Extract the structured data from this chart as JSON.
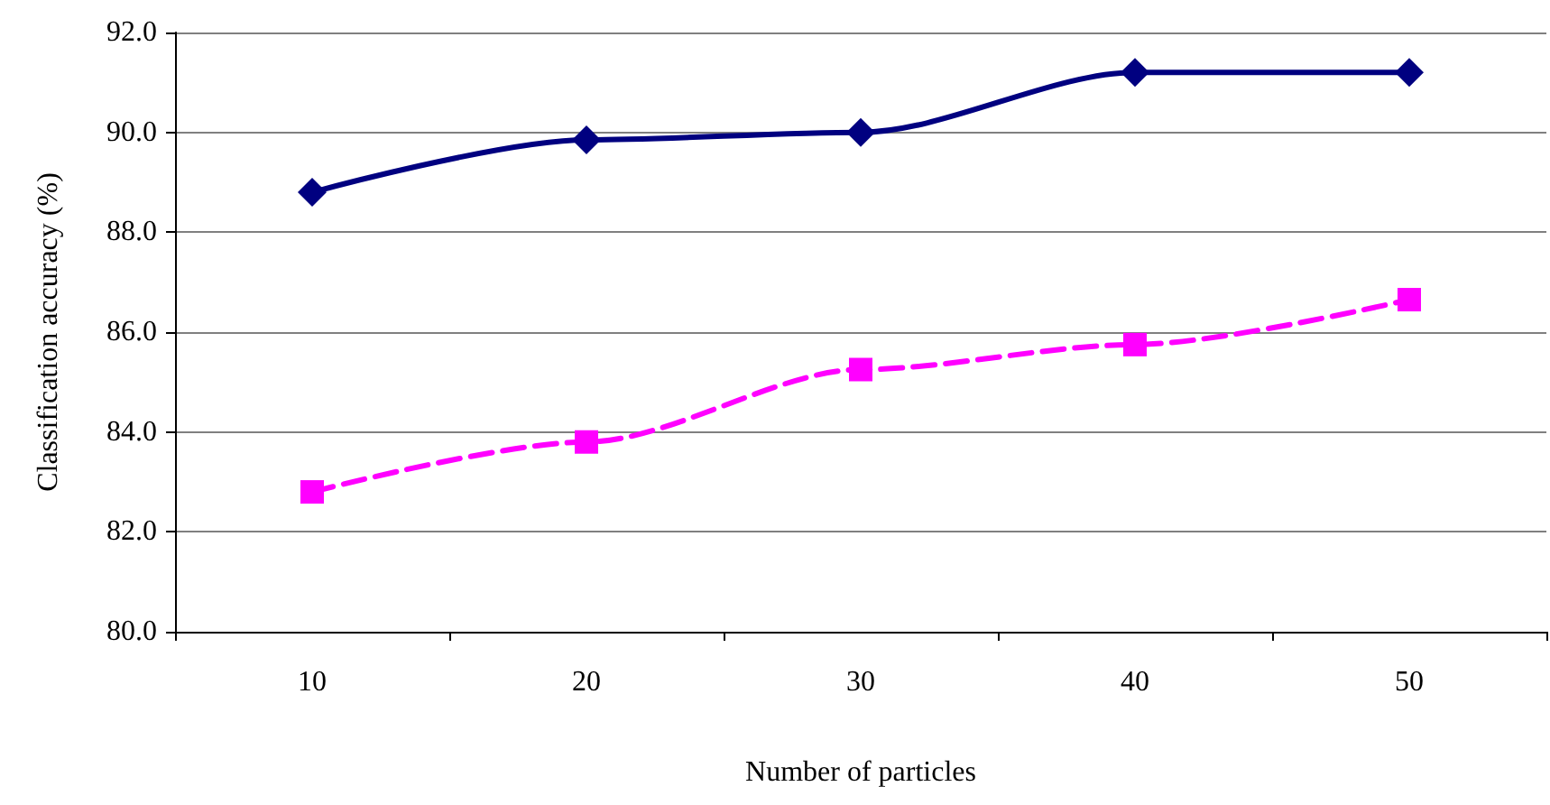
{
  "chart_data": {
    "type": "line",
    "xlabel": "Number of particles",
    "ylabel": "Classification accuracy (%)",
    "categories": [
      "10",
      "20",
      "30",
      "40",
      "50"
    ],
    "series": [
      {
        "color": "#000080",
        "values": [
          88.8,
          89.85,
          90.0,
          91.2,
          91.2
        ],
        "marker": "diamond",
        "line_style": "solid"
      },
      {
        "color": "#ff00ff",
        "values": [
          82.8,
          83.8,
          85.25,
          85.75,
          86.65
        ],
        "marker": "square",
        "line_style": "dashed"
      }
    ],
    "ylim": [
      80,
      92
    ],
    "yticks": [
      {
        "value": 80,
        "label": "80.0"
      },
      {
        "value": 82,
        "label": "82.0"
      },
      {
        "value": 84,
        "label": "84.0"
      },
      {
        "value": 86,
        "label": "86.0"
      },
      {
        "value": 88,
        "label": "88.0"
      },
      {
        "value": 90,
        "label": "90.0"
      },
      {
        "value": 92,
        "label": "92.0"
      }
    ],
    "grid": "y"
  }
}
